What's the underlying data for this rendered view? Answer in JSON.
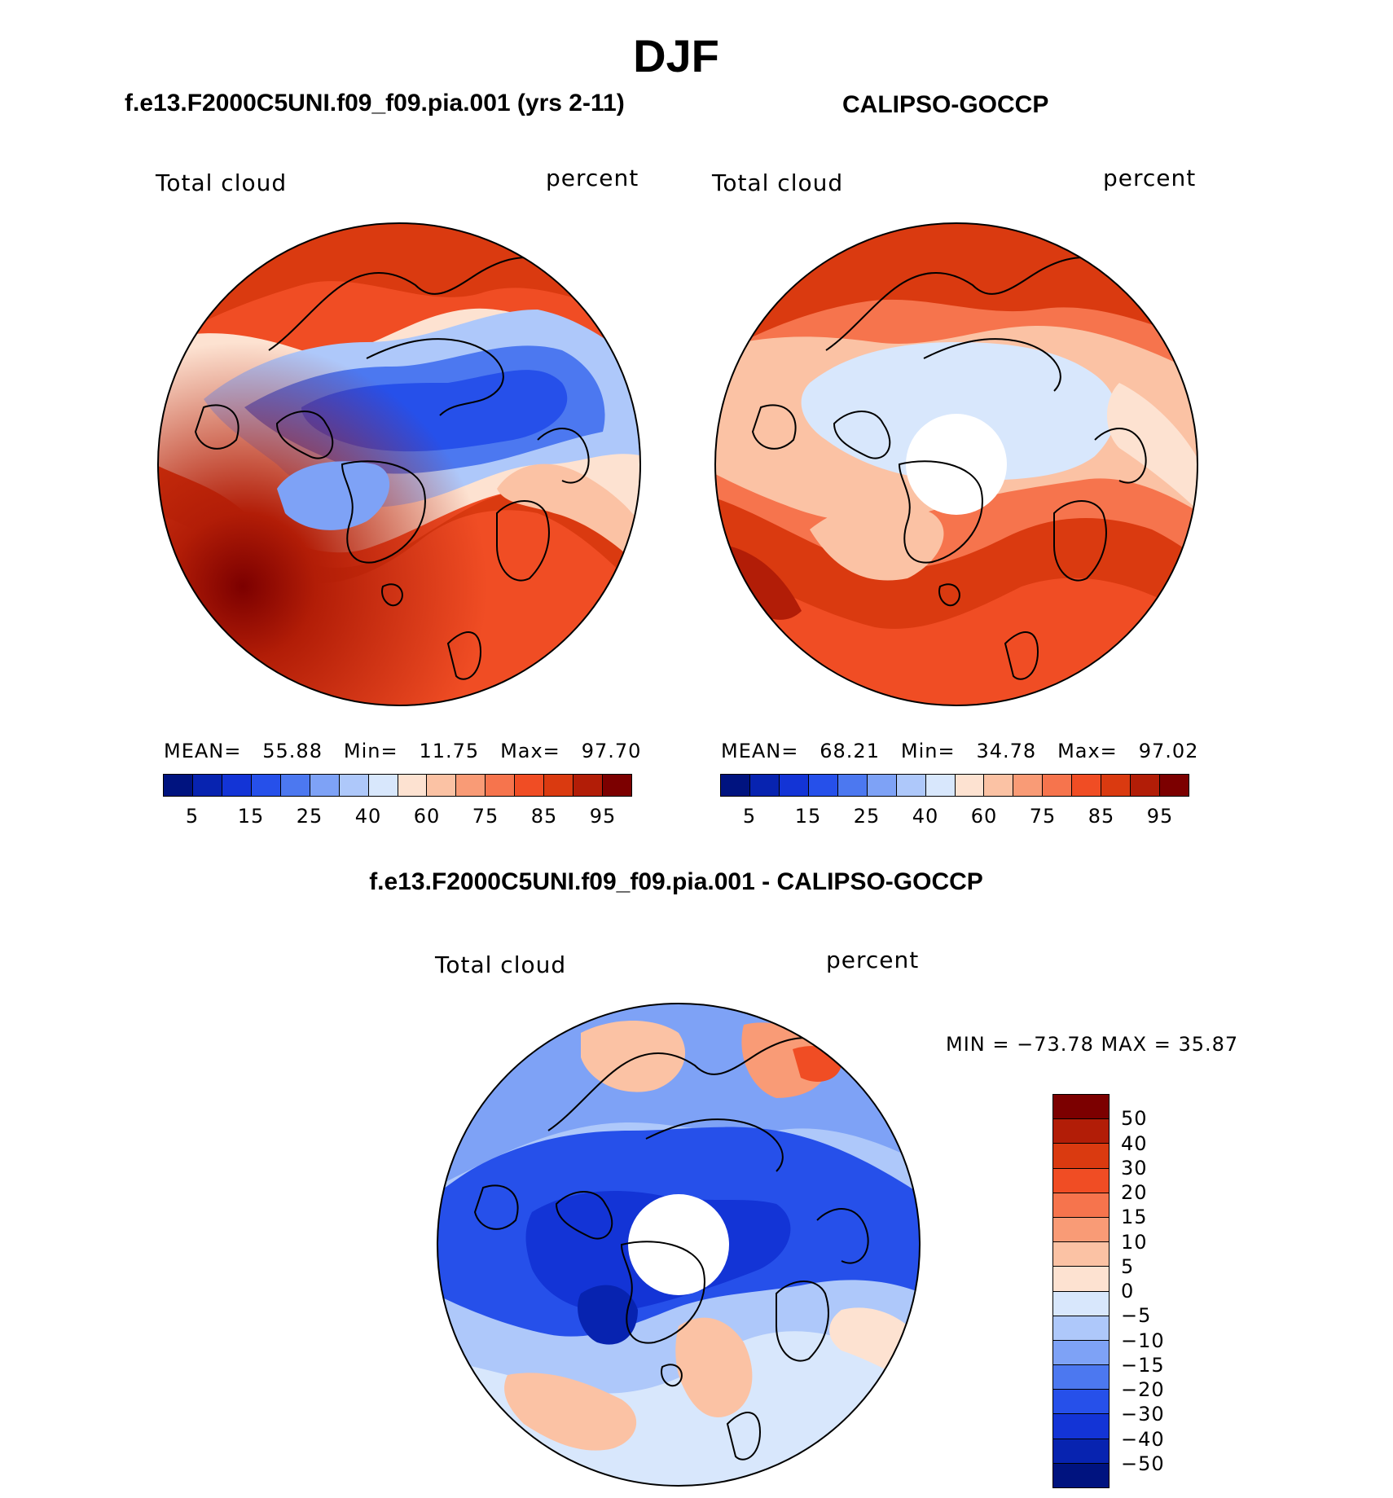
{
  "title": "DJF",
  "panels": {
    "model": {
      "title": "f.e13.F2000C5UNI.f09_f09.pia.001 (yrs 2-11)",
      "variable": "Total cloud",
      "units": "percent",
      "mean_label": "MEAN=",
      "mean": "55.88",
      "min_label": "Min=",
      "min": "11.75",
      "max_label": "Max=",
      "max": "97.70"
    },
    "obs": {
      "title": "CALIPSO-GOCCP",
      "variable": "Total cloud",
      "units": "percent",
      "mean_label": "MEAN=",
      "mean": "68.21",
      "min_label": "Min=",
      "min": "34.78",
      "max_label": "Max=",
      "max": "97.02"
    },
    "diff": {
      "title": "f.e13.F2000C5UNI.f09_f09.pia.001 - CALIPSO-GOCCP",
      "variable": "Total cloud",
      "units": "percent",
      "minmax_text": "MIN = −73.78  MAX =    35.87"
    }
  },
  "colorbar_abs": {
    "colors": [
      "#00137f",
      "#0723b0",
      "#1334d6",
      "#2650ea",
      "#4c78f0",
      "#7ea2f6",
      "#aec8fa",
      "#d8e7fc",
      "#fde2d1",
      "#fbc2a4",
      "#f99b76",
      "#f6744d",
      "#f04d24",
      "#da3a10",
      "#b21d07",
      "#7c0000"
    ],
    "tick_labels": [
      "5",
      "15",
      "25",
      "40",
      "60",
      "75",
      "85",
      "95"
    ]
  },
  "colorbar_diff": {
    "colors": [
      "#7c0000",
      "#b21d07",
      "#da3a10",
      "#f04d24",
      "#f6744d",
      "#f99b76",
      "#fbc2a4",
      "#fde2d1",
      "#d8e7fc",
      "#aec8fa",
      "#7ea2f6",
      "#4c78f0",
      "#2650ea",
      "#1334d6",
      "#0723b0",
      "#00137f"
    ],
    "tick_labels": [
      "50",
      "40",
      "30",
      "20",
      "15",
      "10",
      "5",
      "0",
      "−5",
      "−10",
      "−15",
      "−20",
      "−30",
      "−40",
      "−50"
    ]
  }
}
